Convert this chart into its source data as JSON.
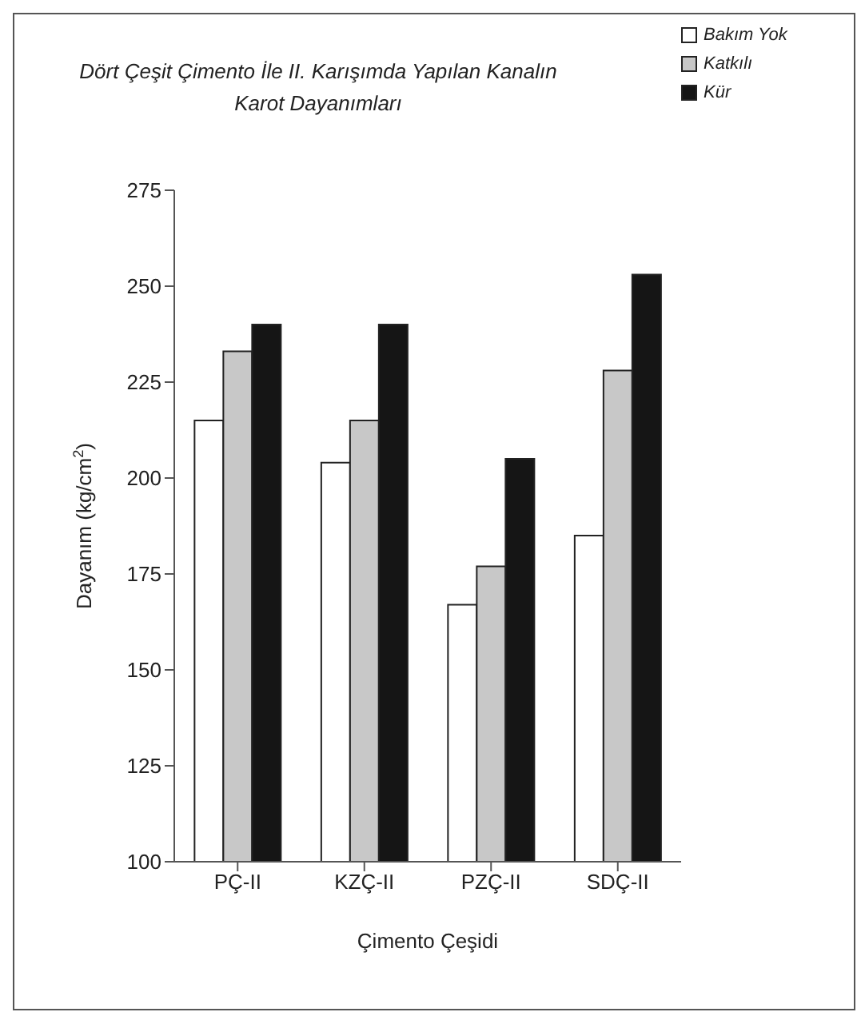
{
  "chart_data": {
    "type": "bar",
    "title": "Dört Çeşit Çimento İle II. Karışımda Yapılan Kanalın Karot Dayanımları",
    "xlabel": "Çimento Çeşidi",
    "ylabel": "Dayanım (kg/cm$^{2}$)",
    "categories": [
      "PÇ-II",
      "KZÇ-II",
      "PZÇ-II",
      "SDÇ-II"
    ],
    "series": [
      {
        "name": "Bakım Yok",
        "color": "#ffffff",
        "values": [
          215,
          204,
          167,
          185
        ]
      },
      {
        "name": "Katkılı",
        "color": "#c8c8c8",
        "values": [
          233,
          215,
          177,
          228
        ]
      },
      {
        "name": "Kür",
        "color": "#151515",
        "values": [
          240,
          240,
          205,
          253
        ]
      }
    ],
    "ylim": [
      100,
      275
    ],
    "yticks": [
      100,
      125,
      150,
      175,
      200,
      225,
      250,
      275
    ],
    "grid": false,
    "legend": "top right"
  }
}
